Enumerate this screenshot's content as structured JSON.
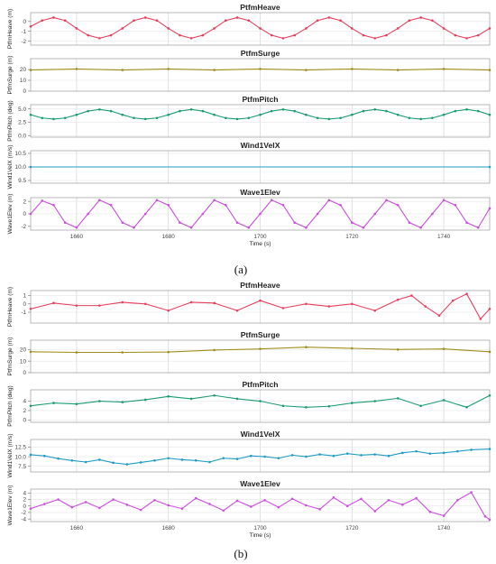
{
  "captions": [
    "(a)",
    "(b)"
  ],
  "chart_data": [
    {
      "type": "line",
      "caption": "(a)",
      "xlabel": "Time (s)",
      "xlim": [
        1650,
        1750
      ],
      "xticks": [
        1660,
        1680,
        1700,
        1720,
        1740
      ],
      "panels": [
        {
          "title": "PtfmHeave",
          "ylabel": "PtfmHeave (m)",
          "color": "#e6405e",
          "ylim": [
            -2.4,
            0.9
          ],
          "yticks": [
            -2,
            -1,
            0
          ],
          "series": [
            {
              "x": [
                1650,
                1652.5,
                1655,
                1657.5,
                1660,
                1662.5,
                1665,
                1667.5,
                1670,
                1672.5,
                1675,
                1677.5,
                1680,
                1682.5,
                1685,
                1687.5,
                1690,
                1692.5,
                1695,
                1697.5,
                1700,
                1702.5,
                1705,
                1707.5,
                1710,
                1712.5,
                1715,
                1717.5,
                1720,
                1722.5,
                1725,
                1727.5,
                1730,
                1732.5,
                1735,
                1737.5,
                1740,
                1742.5,
                1745,
                1747.5,
                1750
              ],
              "y": [
                -0.5,
                0.1,
                0.4,
                0.1,
                -0.7,
                -1.4,
                -1.7,
                -1.4,
                -0.7,
                0.1,
                0.4,
                0.1,
                -0.7,
                -1.4,
                -1.7,
                -1.4,
                -0.7,
                0.1,
                0.4,
                0.1,
                -0.7,
                -1.4,
                -1.7,
                -1.4,
                -0.7,
                0.1,
                0.4,
                0.1,
                -0.7,
                -1.4,
                -1.7,
                -1.4,
                -0.7,
                0.1,
                0.4,
                0.1,
                -0.7,
                -1.4,
                -1.7,
                -1.4,
                -0.7
              ]
            }
          ]
        },
        {
          "title": "PtfmSurge",
          "ylabel": "PtfmSurge (m)",
          "color": "#a08d1c",
          "ylim": [
            0,
            30
          ],
          "yticks": [
            0,
            10,
            20
          ],
          "series": [
            {
              "x": [
                1650,
                1660,
                1670,
                1680,
                1690,
                1700,
                1710,
                1720,
                1730,
                1740,
                1750
              ],
              "y": [
                19.5,
                20.5,
                19.5,
                20.5,
                19.5,
                20.5,
                19.5,
                20.5,
                19.5,
                20.5,
                19.5
              ]
            }
          ]
        },
        {
          "title": "PtfmPitch",
          "ylabel": "PtfmPitch (deg)",
          "color": "#1b9b72",
          "ylim": [
            -0.3,
            5.8
          ],
          "yticks": [
            0.0,
            2.5,
            5.0
          ],
          "series": [
            {
              "x": [
                1650,
                1652.5,
                1655,
                1657.5,
                1660,
                1662.5,
                1665,
                1667.5,
                1670,
                1672.5,
                1675,
                1677.5,
                1680,
                1682.5,
                1685,
                1687.5,
                1690,
                1692.5,
                1695,
                1697.5,
                1700,
                1702.5,
                1705,
                1707.5,
                1710,
                1712.5,
                1715,
                1717.5,
                1720,
                1722.5,
                1725,
                1727.5,
                1730,
                1732.5,
                1735,
                1737.5,
                1740,
                1742.5,
                1745,
                1747.5,
                1750
              ],
              "y": [
                3.9,
                3.3,
                3.1,
                3.3,
                3.9,
                4.6,
                4.9,
                4.6,
                3.9,
                3.3,
                3.1,
                3.3,
                3.9,
                4.6,
                4.9,
                4.6,
                3.9,
                3.3,
                3.1,
                3.3,
                3.9,
                4.6,
                4.9,
                4.6,
                3.9,
                3.3,
                3.1,
                3.3,
                3.9,
                4.6,
                4.9,
                4.6,
                3.9,
                3.3,
                3.1,
                3.3,
                3.9,
                4.6,
                4.9,
                4.6,
                3.9
              ]
            }
          ]
        },
        {
          "title": "Wind1VelX",
          "ylabel": "Wind1VelX (m/s)",
          "color": "#1f9bc2",
          "ylim": [
            9.4,
            10.6
          ],
          "yticks": [
            9.5,
            10.0,
            10.5
          ],
          "series": [
            {
              "x": [
                1650,
                1750
              ],
              "y": [
                10.0,
                10.0
              ]
            }
          ]
        },
        {
          "title": "Wave1Elev",
          "ylabel": "Wave1Elev (m)",
          "color": "#cc4fe0",
          "ylim": [
            -2.6,
            2.6
          ],
          "yticks": [
            -2,
            0,
            2
          ],
          "series": [
            {
              "x": [
                1650,
                1652.5,
                1655,
                1657.5,
                1660,
                1662.5,
                1665,
                1667.5,
                1670,
                1672.5,
                1675,
                1677.5,
                1680,
                1682.5,
                1685,
                1687.5,
                1690,
                1692.5,
                1695,
                1697.5,
                1700,
                1702.5,
                1705,
                1707.5,
                1710,
                1712.5,
                1715,
                1717.5,
                1720,
                1722.5,
                1725,
                1727.5,
                1730,
                1732.5,
                1735,
                1737.5,
                1740,
                1742.5,
                1745,
                1747.5,
                1750
              ],
              "y": [
                0,
                2.1,
                1.4,
                -1.4,
                -2.2,
                0,
                2.2,
                1.4,
                -1.4,
                -2.2,
                0,
                2.2,
                1.4,
                -1.4,
                -2.2,
                0,
                2.2,
                1.4,
                -1.4,
                -2.2,
                0,
                2.2,
                1.4,
                -1.4,
                -2.2,
                0,
                2.2,
                1.4,
                -1.4,
                -2.2,
                0,
                2.2,
                1.4,
                -1.4,
                -2.2,
                0,
                2.2,
                1.4,
                -1.4,
                -2.2,
                0.9
              ]
            }
          ]
        }
      ]
    },
    {
      "type": "line",
      "caption": "(b)",
      "xlabel": "Time (s)",
      "xlim": [
        1650,
        1750
      ],
      "xticks": [
        1660,
        1680,
        1700,
        1720,
        1740
      ],
      "panels": [
        {
          "title": "PtfmHeave",
          "ylabel": "PtfmHeave (m)",
          "color": "#e6405e",
          "ylim": [
            -2.3,
            1.6
          ],
          "yticks": [
            -1,
            0,
            1
          ],
          "series": [
            {
              "x": [
                1650,
                1655,
                1660,
                1665,
                1670,
                1675,
                1680,
                1685,
                1690,
                1695,
                1700,
                1705,
                1710,
                1715,
                1720,
                1725,
                1730,
                1733,
                1736,
                1739,
                1742,
                1745,
                1748,
                1750
              ],
              "y": [
                -0.6,
                0.1,
                -0.2,
                -0.2,
                0.2,
                0.0,
                -0.8,
                0.2,
                0.1,
                -0.8,
                0.4,
                -0.5,
                0.0,
                -0.3,
                0.0,
                -0.8,
                0.5,
                1.0,
                -0.3,
                -1.4,
                0.4,
                1.2,
                -1.8,
                -0.6
              ]
            }
          ]
        },
        {
          "title": "PtfmSurge",
          "ylabel": "PtfmSurge (m)",
          "color": "#a08d1c",
          "ylim": [
            0,
            28
          ],
          "yticks": [
            0,
            10,
            20
          ],
          "series": [
            {
              "x": [
                1650,
                1660,
                1670,
                1680,
                1690,
                1700,
                1710,
                1720,
                1730,
                1740,
                1750
              ],
              "y": [
                18,
                17.5,
                17.5,
                17.8,
                19.5,
                20.5,
                22,
                21,
                20,
                20.5,
                18
              ]
            }
          ]
        },
        {
          "title": "PtfmPitch",
          "ylabel": "PtfmPitch (deg)",
          "color": "#1b9b72",
          "ylim": [
            -0.5,
            6.4
          ],
          "yticks": [
            0,
            2,
            4
          ],
          "series": [
            {
              "x": [
                1650,
                1655,
                1660,
                1665,
                1670,
                1675,
                1680,
                1685,
                1690,
                1695,
                1700,
                1705,
                1710,
                1715,
                1720,
                1725,
                1730,
                1735,
                1740,
                1745,
                1750
              ],
              "y": [
                3.0,
                3.6,
                3.4,
                4.0,
                3.8,
                4.3,
                5.0,
                4.5,
                5.2,
                4.5,
                4.0,
                3.0,
                2.7,
                2.9,
                3.6,
                4.0,
                4.6,
                3.0,
                4.2,
                2.7,
                5.2
              ]
            }
          ]
        },
        {
          "title": "Wind1VelX",
          "ylabel": "Wind1VelX (m/s)",
          "color": "#1f9bc2",
          "ylim": [
            6,
            14.5
          ],
          "yticks": [
            7.5,
            10.0,
            12.5
          ],
          "series": [
            {
              "x": [
                1650,
                1653,
                1656,
                1659,
                1662,
                1665,
                1668,
                1671,
                1674,
                1677,
                1680,
                1683,
                1686,
                1689,
                1692,
                1695,
                1698,
                1701,
                1704,
                1707,
                1710,
                1713,
                1716,
                1719,
                1722,
                1725,
                1728,
                1731,
                1734,
                1737,
                1740,
                1743,
                1746,
                1750
              ],
              "y": [
                10.5,
                10.2,
                9.5,
                9.0,
                8.6,
                9.2,
                8.4,
                8.0,
                8.5,
                9.0,
                9.6,
                9.2,
                9.0,
                8.6,
                9.6,
                9.4,
                10.2,
                10.0,
                9.6,
                10.4,
                10.0,
                10.6,
                10.2,
                10.8,
                10.4,
                10.6,
                10.2,
                11.0,
                11.4,
                10.8,
                11.0,
                11.4,
                11.8,
                12.0
              ]
            }
          ]
        },
        {
          "title": "Wave1Elev",
          "ylabel": "Wave1Elev (m)",
          "color": "#cc4fe0",
          "ylim": [
            -4.8,
            5.2
          ],
          "yticks": [
            -4,
            -2,
            0,
            2,
            4
          ],
          "series": [
            {
              "x": [
                1650,
                1653,
                1656,
                1659,
                1662,
                1665,
                1668,
                1671,
                1674,
                1677,
                1680,
                1683,
                1686,
                1689,
                1692,
                1695,
                1698,
                1701,
                1704,
                1707,
                1710,
                1713,
                1716,
                1719,
                1722,
                1725,
                1728,
                1731,
                1734,
                1737,
                1740,
                1743,
                1746,
                1749,
                1750
              ],
              "y": [
                -0.8,
                0.6,
                2.0,
                -0.4,
                1.2,
                -0.6,
                2.0,
                0.4,
                -1.2,
                1.8,
                0.2,
                -0.8,
                2.4,
                0.6,
                -1.4,
                1.6,
                -0.2,
                1.8,
                -0.4,
                2.2,
                0.2,
                -1.0,
                2.6,
                0.0,
                2.2,
                -1.6,
                1.8,
                0.4,
                2.4,
                -1.8,
                -3.0,
                1.8,
                4.2,
                -3.2,
                -4.2
              ]
            }
          ]
        }
      ]
    }
  ]
}
